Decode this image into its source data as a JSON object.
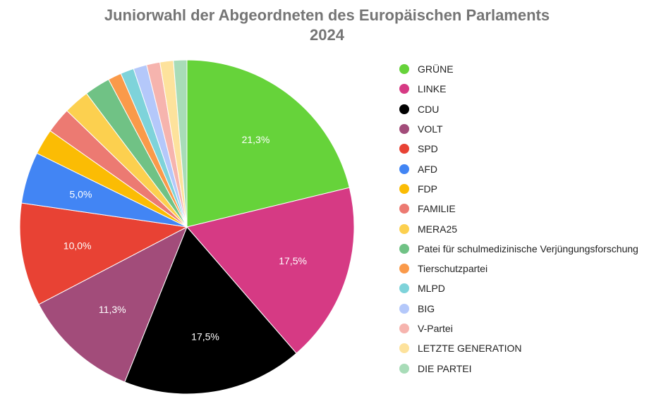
{
  "chart_data": {
    "type": "pie",
    "title_lines": [
      "Juniorwahl der Abgeordneten des Europäischen Parlaments",
      "2024"
    ],
    "legend_position": "right",
    "slices": [
      {
        "name": "GRÜNE",
        "value": 21.3,
        "label": "21,3%",
        "color": "#66d33a"
      },
      {
        "name": "LINKE",
        "value": 17.5,
        "label": "17,5%",
        "color": "#d63a84"
      },
      {
        "name": "CDU",
        "value": 17.5,
        "label": "17,5%",
        "color": "#000000"
      },
      {
        "name": "VOLT",
        "value": 11.3,
        "label": "11,3%",
        "color": "#a24c7a"
      },
      {
        "name": "SPD",
        "value": 10.0,
        "label": "10,0%",
        "color": "#e84234"
      },
      {
        "name": "AFD",
        "value": 5.0,
        "label": "5,0%",
        "color": "#4285f4"
      },
      {
        "name": "FDP",
        "value": 2.5,
        "label": "",
        "color": "#fbbc04"
      },
      {
        "name": "FAMILIE",
        "value": 2.5,
        "label": "",
        "color": "#ec7a72"
      },
      {
        "name": "MERA25",
        "value": 2.5,
        "label": "",
        "color": "#fcd04f"
      },
      {
        "name": "Patei für schulmedizinische Verjüngungsforschung",
        "value": 2.5,
        "label": "",
        "color": "#70c285"
      },
      {
        "name": "Tierschutzpartei",
        "value": 1.3,
        "label": "",
        "color": "#fa9a4a"
      },
      {
        "name": "MLPD",
        "value": 1.3,
        "label": "",
        "color": "#7ed3da"
      },
      {
        "name": "BIG",
        "value": 1.3,
        "label": "",
        "color": "#b4c8fa"
      },
      {
        "name": "V-Partei",
        "value": 1.3,
        "label": "",
        "color": "#f6b4ae"
      },
      {
        "name": "LETZTE GENERATION",
        "value": 1.3,
        "label": "",
        "color": "#fde29c"
      },
      {
        "name": "DIE PARTEI",
        "value": 1.3,
        "label": "",
        "color": "#a8dcb8"
      }
    ]
  }
}
